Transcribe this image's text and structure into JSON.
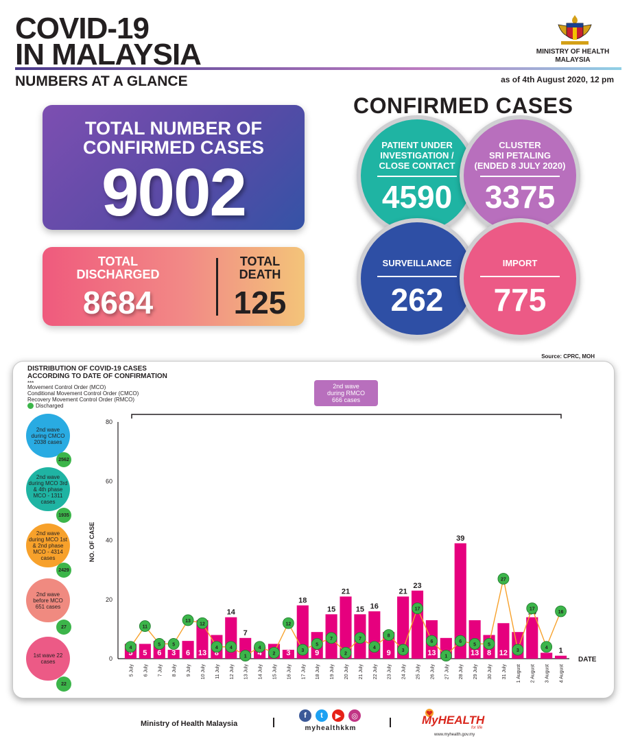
{
  "header": {
    "title_line1": "COVID-19",
    "title_line2": "IN MALAYSIA",
    "subtitle": "NUMBERS AT A GLANCE",
    "as_of": "as of 4th August 2020, 12 pm",
    "ministry_line1": "MINISTRY OF HEALTH",
    "ministry_line2": "MALAYSIA"
  },
  "totals": {
    "confirmed_label_1": "TOTAL NUMBER OF",
    "confirmed_label_2": "CONFIRMED CASES",
    "confirmed_value": "9002",
    "discharged_label_1": "TOTAL",
    "discharged_label_2": "DISCHARGED",
    "discharged_value": "8684",
    "death_label_1": "TOTAL",
    "death_label_2": "DEATH",
    "death_value": "125"
  },
  "confirmed_cases": {
    "title": "CONFIRMED CASES",
    "pui_label_1": "PATIENT UNDER",
    "pui_label_2": "INVESTIGATION /",
    "pui_label_3": "CLOSE CONTACT",
    "pui_value": "4590",
    "cluster_label_1": "CLUSTER",
    "cluster_label_2": "SRI PETALING",
    "cluster_label_3": "(ENDED 8 JULY 2020)",
    "cluster_value": "3375",
    "surveillance_label": "SURVEILLANCE",
    "surveillance_value": "262",
    "import_label": "IMPORT",
    "import_value": "775"
  },
  "source": "Source: CPRC, MOH",
  "distribution": {
    "title_line1": "DISTRIBUTION OF COVID-19 CASES",
    "title_line2": "ACCORDING TO DATE OF CONFIRMATION",
    "stars": "***",
    "legend_mco": "Movement Control Order (MCO)",
    "legend_cmco": "Conditional Movement Control Order (CMCO)",
    "legend_rmco": "Recovery Movement Control Order (RMCO)",
    "legend_discharged": "Discharged",
    "rmco_box_line1": "2nd wave",
    "rmco_box_line2": "during RMCO",
    "rmco_box_line3": "666 cases"
  },
  "waves": [
    {
      "text": "2nd wave during CMCO 2038 cases",
      "discharged": "2562",
      "color": "#29abe2"
    },
    {
      "text": "2nd wave during MCO 3rd & 4th phase MCO - 1311 cases",
      "discharged": "1935",
      "color": "#1fb4a3"
    },
    {
      "text": "2nd wave during MCO 1st & 2nd phase MCO - 4314 cases",
      "discharged": "2429",
      "color": "#f7a12b"
    },
    {
      "text": "2nd wave before MCO 651 cases",
      "discharged": "27",
      "color": "#f08a80"
    },
    {
      "text": "1st wave 22 cases",
      "discharged": "22",
      "color": "#ec5a86"
    }
  ],
  "footer": {
    "ministry": "Ministry of Health Malaysia",
    "handle": "myhealthkkm",
    "myhealth": "MyHEALTH",
    "myhealth_sub": "for life",
    "url": "www.myhealth.gov.my"
  },
  "colors": {
    "bar": "#e6007e",
    "discharged": "#3cb54a",
    "line": "#f7a12b"
  },
  "chart_data": {
    "type": "bar",
    "title": "",
    "xlabel": "DATE",
    "ylabel": "NO. OF CASE",
    "ylim": [
      0,
      80
    ],
    "yticks": [
      0,
      20,
      40,
      60,
      80
    ],
    "grid": false,
    "categories": [
      "5 July",
      "6 July",
      "7 July",
      "8 July",
      "9 July",
      "10 July",
      "11 July",
      "12 July",
      "13 July",
      "14 July",
      "15 July",
      "16 July",
      "17 July",
      "18 July",
      "19 July",
      "20 July",
      "21 July",
      "22 July",
      "23 July",
      "24 July",
      "25 July",
      "26 July",
      "27 July",
      "28 July",
      "29 July",
      "30 July",
      "31 July",
      "1 August",
      "2 August",
      "3 August",
      "4 August"
    ],
    "series": [
      {
        "values": [
          5,
          5,
          6,
          3,
          6,
          13,
          8,
          14,
          7,
          4,
          5,
          3,
          18,
          9,
          15,
          21,
          15,
          16,
          9,
          21,
          23,
          13,
          7,
          39,
          13,
          8,
          12,
          9,
          14,
          2,
          1
        ]
      },
      {
        "name": "Discharged",
        "values": [
          4,
          11,
          5,
          5,
          13,
          12,
          4,
          4,
          1,
          4,
          2,
          12,
          3,
          5,
          7,
          2,
          7,
          4,
          8,
          3,
          17,
          6,
          1,
          6,
          5,
          5,
          27,
          3,
          17,
          4,
          16
        ]
      }
    ]
  }
}
